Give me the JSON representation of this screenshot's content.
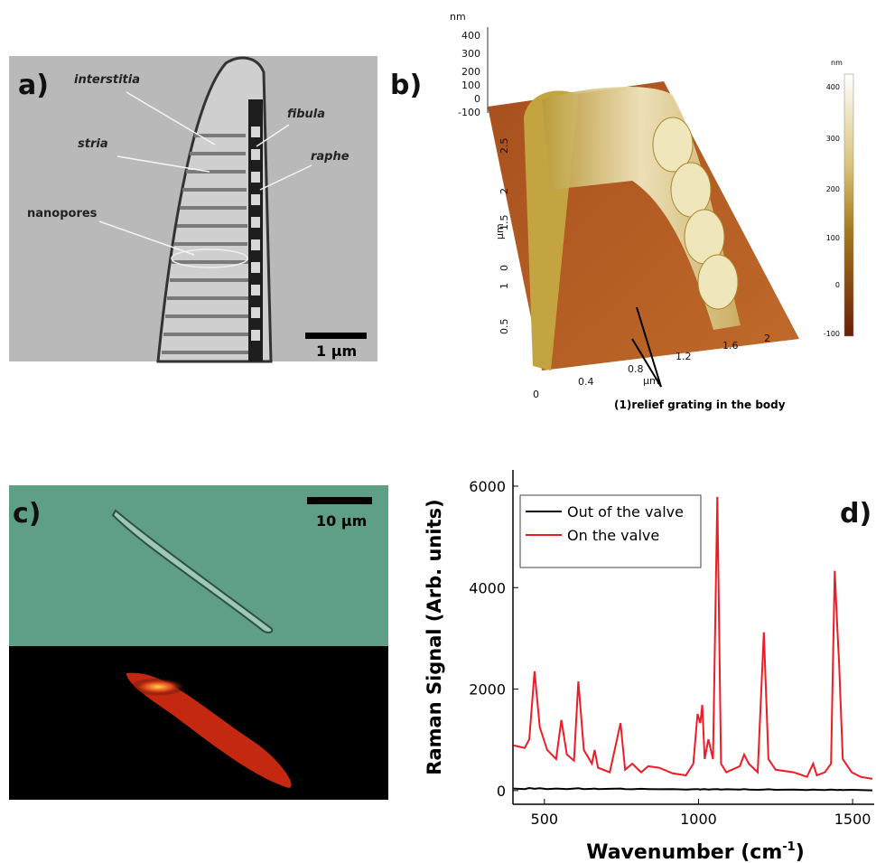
{
  "panels": {
    "a": {
      "label": "a)",
      "annotations": [
        "interstitia",
        "stria",
        "nanopores",
        "fibula",
        "raphe"
      ],
      "scale_bar": "1 μm"
    },
    "b": {
      "label": "b)",
      "z_unit": "nm",
      "z_ticks": [
        "400",
        "300",
        "200",
        "100",
        "0",
        "-100"
      ],
      "y_unit": "μm",
      "y_ticks": [
        "2.5",
        "2",
        "1.5",
        "1",
        "0.5",
        "0"
      ],
      "x_unit": "μm",
      "x_ticks": [
        "0",
        "0.4",
        "0.8",
        "1.2",
        "1.6",
        "2"
      ],
      "annotation": "(1)relief grating in the body",
      "colorbar_unit": "nm",
      "colorbar_ticks": [
        "400",
        "300",
        "200",
        "100",
        "0",
        "-100"
      ]
    },
    "c": {
      "label": "c)",
      "scale_bar": "10 μm"
    }
  },
  "chart_data": {
    "type": "line",
    "label": "d)",
    "y_label": "Raman Signal (Arb. units)",
    "x_label": [
      "Wavenumber (cm",
      "-1",
      ")"
    ],
    "x": [
      400,
      436,
      451,
      468,
      485,
      509,
      538,
      555,
      573,
      596,
      610,
      628,
      654,
      663,
      674,
      712,
      747,
      762,
      785,
      814,
      837,
      872,
      916,
      959,
      983,
      997,
      1006,
      1012,
      1020,
      1032,
      1047,
      1061,
      1073,
      1090,
      1134,
      1148,
      1163,
      1192,
      1212,
      1227,
      1250,
      1308,
      1352,
      1372,
      1384,
      1410,
      1430,
      1442,
      1451,
      1456,
      1468,
      1497,
      1526,
      1564
    ],
    "series": [
      {
        "name": "Out of the valve",
        "color": "#000000",
        "values": [
          40,
          30,
          50,
          35,
          45,
          30,
          40,
          35,
          30,
          40,
          45,
          30,
          35,
          40,
          30,
          35,
          40,
          30,
          25,
          35,
          30,
          25,
          30,
          20,
          25,
          30,
          20,
          25,
          30,
          20,
          25,
          30,
          20,
          25,
          20,
          30,
          20,
          15,
          20,
          25,
          15,
          20,
          10,
          20,
          15,
          10,
          20,
          15,
          10,
          15,
          10,
          15,
          10,
          5
        ]
      },
      {
        "name": "On the valve",
        "color": "#ee1c24",
        "values": [
          890,
          840,
          1010,
          2350,
          1250,
          800,
          620,
          1390,
          710,
          590,
          2150,
          800,
          530,
          800,
          450,
          360,
          1330,
          410,
          530,
          360,
          480,
          450,
          340,
          300,
          530,
          1510,
          1330,
          1690,
          620,
          1010,
          620,
          5790,
          530,
          360,
          480,
          710,
          530,
          360,
          3120,
          620,
          410,
          360,
          270,
          530,
          300,
          360,
          530,
          4330,
          3120,
          2530,
          620,
          360,
          270,
          230
        ]
      }
    ],
    "xlim": [
      398,
      1570
    ],
    "ylim": [
      -270,
      6320
    ],
    "xticks": [
      500,
      1000,
      1500
    ],
    "yticks": [
      0,
      2000,
      4000,
      6000
    ],
    "legend": "top-left"
  }
}
